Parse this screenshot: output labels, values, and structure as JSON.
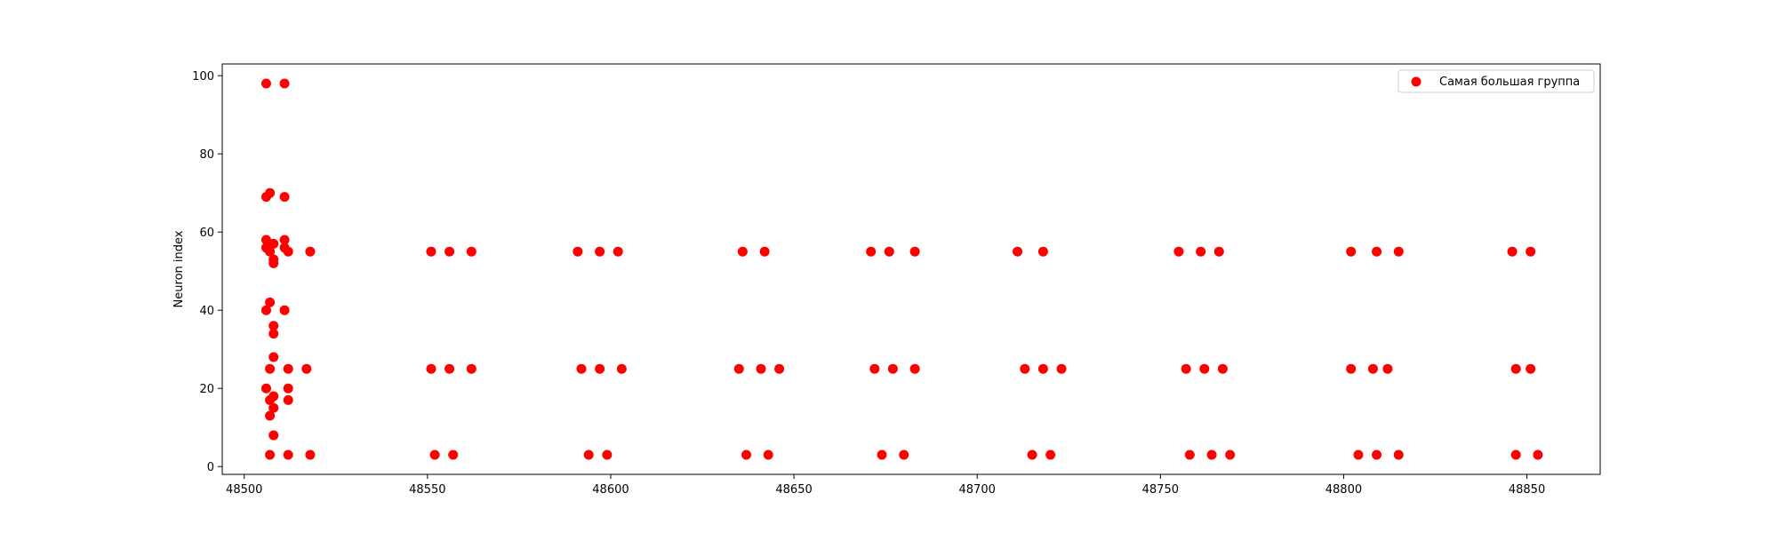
{
  "chart_data": {
    "type": "scatter",
    "title": "",
    "xlabel": "",
    "ylabel": "Neuron index",
    "xlim": [
      48494,
      48870
    ],
    "ylim": [
      -2,
      103
    ],
    "xticks": [
      48500,
      48550,
      48600,
      48650,
      48700,
      48750,
      48800,
      48850
    ],
    "yticks": [
      0,
      20,
      40,
      60,
      80,
      100
    ],
    "grid": false,
    "legend_position": "top-right",
    "series": [
      {
        "name": "Самая большая группа",
        "color": "#ff0000",
        "points": [
          [
            48506,
            98
          ],
          [
            48511,
            98
          ],
          [
            48506,
            69
          ],
          [
            48507,
            70
          ],
          [
            48511,
            69
          ],
          [
            48506,
            58
          ],
          [
            48511,
            58
          ],
          [
            48506,
            56
          ],
          [
            48507,
            55
          ],
          [
            48508,
            57
          ],
          [
            48508,
            53
          ],
          [
            48508,
            52
          ],
          [
            48511,
            56
          ],
          [
            48512,
            55
          ],
          [
            48518,
            55
          ],
          [
            48507,
            42
          ],
          [
            48506,
            40
          ],
          [
            48511,
            40
          ],
          [
            48508,
            36
          ],
          [
            48508,
            34
          ],
          [
            48508,
            28
          ],
          [
            48507,
            25
          ],
          [
            48512,
            25
          ],
          [
            48517,
            25
          ],
          [
            48506,
            20
          ],
          [
            48512,
            20
          ],
          [
            48507,
            17
          ],
          [
            48508,
            18
          ],
          [
            48512,
            17
          ],
          [
            48508,
            15
          ],
          [
            48507,
            13
          ],
          [
            48508,
            8
          ],
          [
            48507,
            3
          ],
          [
            48512,
            3
          ],
          [
            48518,
            3
          ],
          [
            48551,
            55
          ],
          [
            48556,
            55
          ],
          [
            48562,
            55
          ],
          [
            48551,
            25
          ],
          [
            48556,
            25
          ],
          [
            48562,
            25
          ],
          [
            48552,
            3
          ],
          [
            48557,
            3
          ],
          [
            48591,
            55
          ],
          [
            48597,
            55
          ],
          [
            48602,
            55
          ],
          [
            48592,
            25
          ],
          [
            48597,
            25
          ],
          [
            48603,
            25
          ],
          [
            48594,
            3
          ],
          [
            48599,
            3
          ],
          [
            48636,
            55
          ],
          [
            48642,
            55
          ],
          [
            48635,
            25
          ],
          [
            48641,
            25
          ],
          [
            48646,
            25
          ],
          [
            48637,
            3
          ],
          [
            48643,
            3
          ],
          [
            48671,
            55
          ],
          [
            48676,
            55
          ],
          [
            48683,
            55
          ],
          [
            48672,
            25
          ],
          [
            48677,
            25
          ],
          [
            48683,
            25
          ],
          [
            48674,
            3
          ],
          [
            48680,
            3
          ],
          [
            48711,
            55
          ],
          [
            48718,
            55
          ],
          [
            48713,
            25
          ],
          [
            48718,
            25
          ],
          [
            48723,
            25
          ],
          [
            48715,
            3
          ],
          [
            48720,
            3
          ],
          [
            48755,
            55
          ],
          [
            48761,
            55
          ],
          [
            48766,
            55
          ],
          [
            48757,
            25
          ],
          [
            48762,
            25
          ],
          [
            48767,
            25
          ],
          [
            48758,
            3
          ],
          [
            48764,
            3
          ],
          [
            48769,
            3
          ],
          [
            48802,
            55
          ],
          [
            48809,
            55
          ],
          [
            48815,
            55
          ],
          [
            48802,
            25
          ],
          [
            48808,
            25
          ],
          [
            48812,
            25
          ],
          [
            48804,
            3
          ],
          [
            48809,
            3
          ],
          [
            48815,
            3
          ],
          [
            48846,
            55
          ],
          [
            48851,
            55
          ],
          [
            48847,
            25
          ],
          [
            48851,
            25
          ],
          [
            48847,
            3
          ],
          [
            48853,
            3
          ]
        ]
      }
    ]
  }
}
